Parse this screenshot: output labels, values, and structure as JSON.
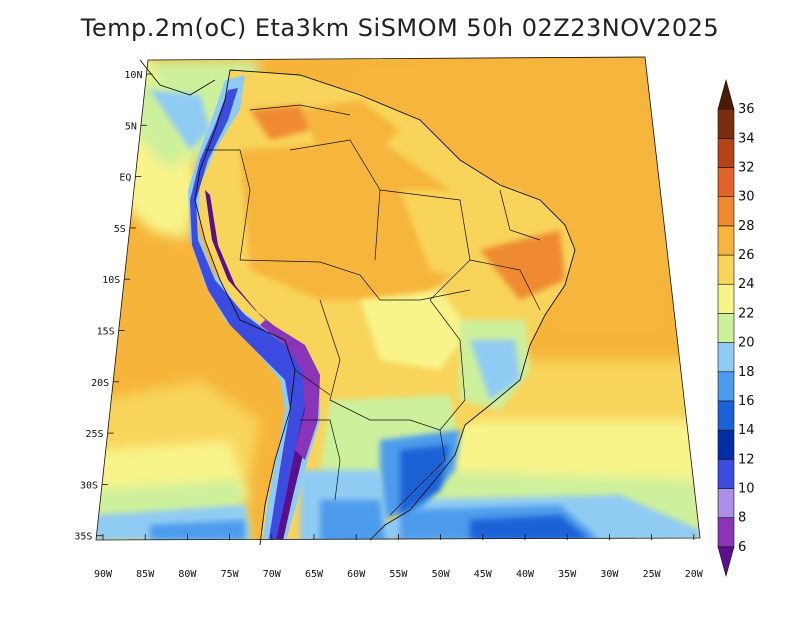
{
  "title": "Temp.2m(oC) Eta3km SiSMOM 50h 02Z23NOV2025",
  "map": {
    "lat_labels": [
      "10N",
      "5N",
      "EQ",
      "5S",
      "10S",
      "15S",
      "20S",
      "25S",
      "30S",
      "35S"
    ],
    "lon_labels": [
      "90W",
      "85W",
      "80W",
      "75W",
      "70W",
      "65W",
      "60W",
      "55W",
      "50W",
      "45W",
      "40W",
      "35W",
      "30W",
      "25W",
      "20W"
    ]
  },
  "legend": {
    "labels": [
      "6",
      "8",
      "10",
      "12",
      "14",
      "16",
      "18",
      "20",
      "22",
      "24",
      "26",
      "28",
      "30",
      "32",
      "34",
      "36"
    ],
    "colors": [
      "#5a0f8c",
      "#8a34b8",
      "#a98fe6",
      "#3c4be0",
      "#002ea6",
      "#1a62d6",
      "#4d9cec",
      "#90cbf4",
      "#cdf09c",
      "#f8f48a",
      "#f8d45a",
      "#f6b63c",
      "#ef8a30",
      "#e0642a",
      "#b24418",
      "#7a2e10",
      "#4a1c08"
    ]
  }
}
